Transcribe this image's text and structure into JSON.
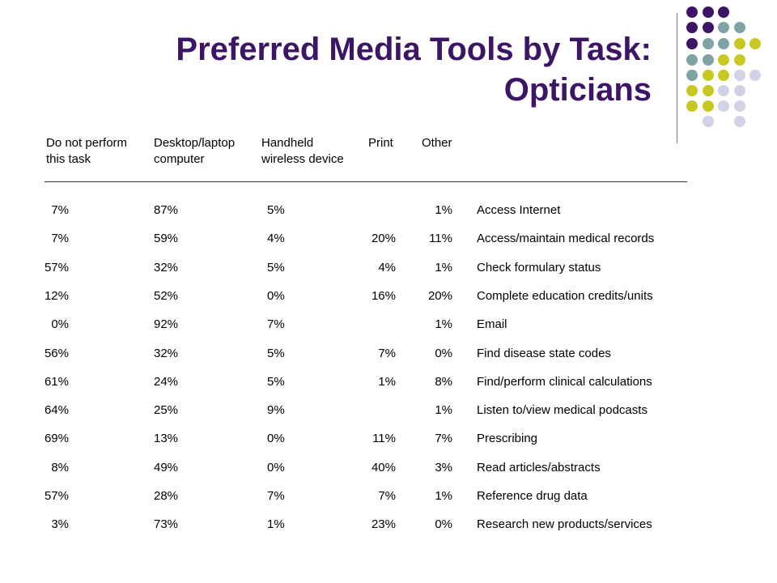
{
  "title_line1": "Preferred Media Tools by Task:",
  "title_line2": "Opticians",
  "colors": {
    "title": "#3d1566",
    "dot_purple": "#3d1566",
    "dot_teal": "#7fa2a4",
    "dot_olive": "#c8c822",
    "dot_lavender": "#d2d2e6"
  },
  "headers": {
    "c1": [
      "Do not perform",
      "this task"
    ],
    "c2": [
      "Desktop/laptop",
      "computer"
    ],
    "c3": [
      "Handheld",
      "wireless device"
    ],
    "c4": [
      "Print",
      ""
    ],
    "c5": [
      "Other",
      ""
    ]
  },
  "rows": [
    {
      "c1": "7%",
      "c2": "87%",
      "c3": "5%",
      "c4": "",
      "c5": "1%",
      "task": "Access Internet"
    },
    {
      "c1": "7%",
      "c2": "59%",
      "c3": "4%",
      "c4": "20%",
      "c5": "11%",
      "task": "Access/maintain medical records"
    },
    {
      "c1": "57%",
      "c2": "32%",
      "c3": "5%",
      "c4": "4%",
      "c5": "1%",
      "task": "Check formulary status"
    },
    {
      "c1": "12%",
      "c2": "52%",
      "c3": "0%",
      "c4": "16%",
      "c5": "20%",
      "task": "Complete education credits/units"
    },
    {
      "c1": "0%",
      "c2": "92%",
      "c3": "7%",
      "c4": "",
      "c5": "1%",
      "task": "Email"
    },
    {
      "c1": "56%",
      "c2": "32%",
      "c3": "5%",
      "c4": "7%",
      "c5": "0%",
      "task": "Find disease state codes"
    },
    {
      "c1": "61%",
      "c2": "24%",
      "c3": "5%",
      "c4": "1%",
      "c5": "8%",
      "task": "Find/perform clinical calculations"
    },
    {
      "c1": "64%",
      "c2": "25%",
      "c3": "9%",
      "c4": "",
      "c5": "1%",
      "task": "Listen to/view medical podcasts"
    },
    {
      "c1": "69%",
      "c2": "13%",
      "c3": "0%",
      "c4": "11%",
      "c5": "7%",
      "task": "Prescribing"
    },
    {
      "c1": "8%",
      "c2": "49%",
      "c3": "0%",
      "c4": "40%",
      "c5": "3%",
      "task": "Read articles/abstracts"
    },
    {
      "c1": "57%",
      "c2": "28%",
      "c3": "7%",
      "c4": "7%",
      "c5": "1%",
      "task": "Reference drug data"
    },
    {
      "c1": "3%",
      "c2": "73%",
      "c3": "1%",
      "c4": "23%",
      "c5": "0%",
      "task": "Research new products/services"
    }
  ]
}
